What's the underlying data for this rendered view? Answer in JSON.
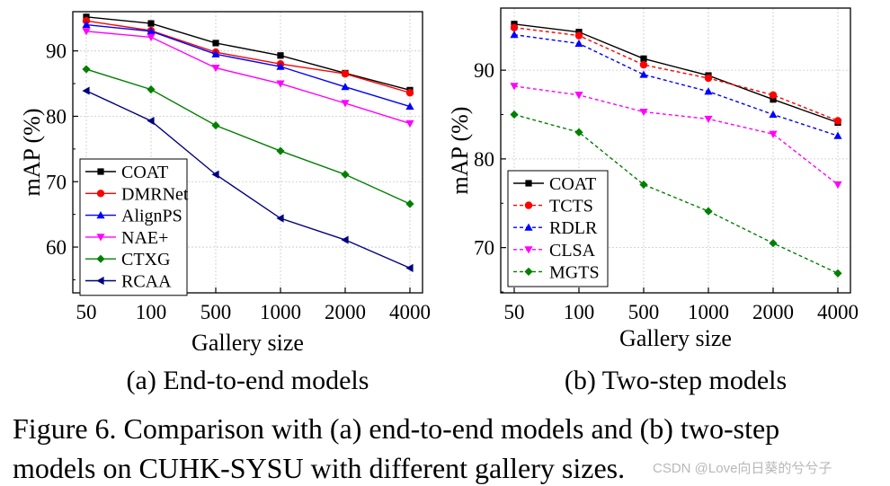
{
  "figure_caption": {
    "line1": "Figure 6. Comparison with (a) end-to-end models and (b) two-step",
    "line2": "models on CUHK-SYSU with different gallery sizes."
  },
  "watermark": "CSDN @Love向日葵的兮兮子",
  "chart_data": [
    {
      "type": "line",
      "panel": "a",
      "title": "(a) End-to-end models",
      "xlabel": "Gallery size",
      "ylabel": "mAP (%)",
      "categories": [
        "50",
        "100",
        "500",
        "1000",
        "2000",
        "4000"
      ],
      "ylim": [
        53,
        96
      ],
      "yticks": [
        60,
        70,
        80,
        90
      ],
      "grid": true,
      "legend_position": "bottom-left",
      "series": [
        {
          "name": "COAT",
          "color": "#000000",
          "marker": "square",
          "dash": "solid",
          "values": [
            95.2,
            94.2,
            91.2,
            89.3,
            86.6,
            84.0
          ]
        },
        {
          "name": "DMRNet",
          "color": "#ff0000",
          "marker": "circle",
          "dash": "solid",
          "values": [
            94.6,
            93.1,
            89.8,
            88.0,
            86.5,
            83.6
          ]
        },
        {
          "name": "AlignPS",
          "color": "#0000ff",
          "marker": "triangle-up",
          "dash": "solid",
          "values": [
            94.0,
            93.0,
            89.5,
            87.6,
            84.5,
            81.5
          ]
        },
        {
          "name": "NAE+",
          "color": "#ff00ff",
          "marker": "triangle-down",
          "dash": "solid",
          "values": [
            93.0,
            92.1,
            87.4,
            85.0,
            82.0,
            78.9
          ]
        },
        {
          "name": "CTXG",
          "color": "#008000",
          "marker": "diamond",
          "dash": "solid",
          "values": [
            87.2,
            84.1,
            78.6,
            74.7,
            71.1,
            66.6
          ]
        },
        {
          "name": "RCAA",
          "color": "#000080",
          "marker": "triangle-left",
          "dash": "solid",
          "values": [
            83.9,
            79.3,
            71.1,
            64.4,
            61.1,
            56.8
          ]
        }
      ]
    },
    {
      "type": "line",
      "panel": "b",
      "title": "(b) Two-step models",
      "xlabel": "Gallery size",
      "ylabel": "mAP (%)",
      "categories": [
        "50",
        "100",
        "500",
        "1000",
        "2000",
        "4000"
      ],
      "ylim": [
        64.9,
        97
      ],
      "yticks": [
        70,
        80,
        90
      ],
      "grid": true,
      "legend_position": "bottom-left",
      "series": [
        {
          "name": "COAT",
          "color": "#000000",
          "marker": "square",
          "dash": "solid",
          "values": [
            95.2,
            94.3,
            91.3,
            89.4,
            86.7,
            84.1
          ]
        },
        {
          "name": "TCTS",
          "color": "#ff0000",
          "marker": "circle",
          "dash": "dashed",
          "values": [
            94.8,
            93.9,
            90.6,
            89.1,
            87.2,
            84.3
          ]
        },
        {
          "name": "RDLR",
          "color": "#0000ff",
          "marker": "triangle-up",
          "dash": "dashed",
          "values": [
            94.0,
            93.0,
            89.5,
            87.6,
            85.0,
            82.6
          ]
        },
        {
          "name": "CLSA",
          "color": "#ff00ff",
          "marker": "triangle-down",
          "dash": "dashed",
          "values": [
            88.2,
            87.2,
            85.3,
            84.5,
            82.8,
            77.1
          ]
        },
        {
          "name": "MGTS",
          "color": "#008000",
          "marker": "diamond",
          "dash": "dashed",
          "values": [
            85.0,
            83.0,
            77.1,
            74.1,
            70.5,
            67.1
          ]
        }
      ]
    }
  ]
}
